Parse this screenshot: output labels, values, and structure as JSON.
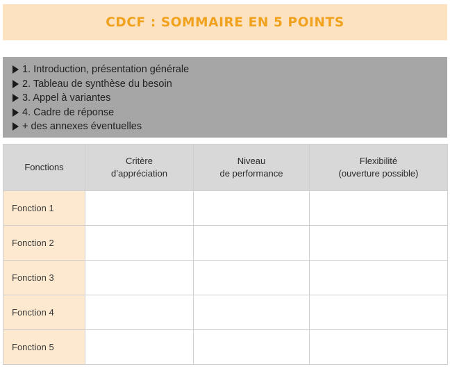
{
  "title": "CDCF : SOMMAIRE EN 5 POINTS",
  "summary": {
    "items": [
      "1.  Introduction, présentation générale",
      "2. Tableau de synthèse du besoin",
      "3. Appel à variantes",
      "4. Cadre de réponse",
      "+  des annexes éventuelles"
    ]
  },
  "table": {
    "headers": [
      [
        "Fonctions"
      ],
      [
        "Critère",
        "d’appréciation"
      ],
      [
        "Niveau",
        "de performance"
      ],
      [
        "Flexibilité",
        "(ouverture possible)"
      ]
    ],
    "rows": [
      "Fonction 1",
      "Fonction 2",
      "Fonction 3",
      "Fonction 4",
      "Fonction 5"
    ]
  },
  "colors": {
    "banner_bg": "#fde2c1",
    "title": "#f0a21e",
    "summary_bg": "#a6a6a6",
    "header_bg": "#d8d8d8",
    "rowhead_bg": "#fde9cf"
  }
}
